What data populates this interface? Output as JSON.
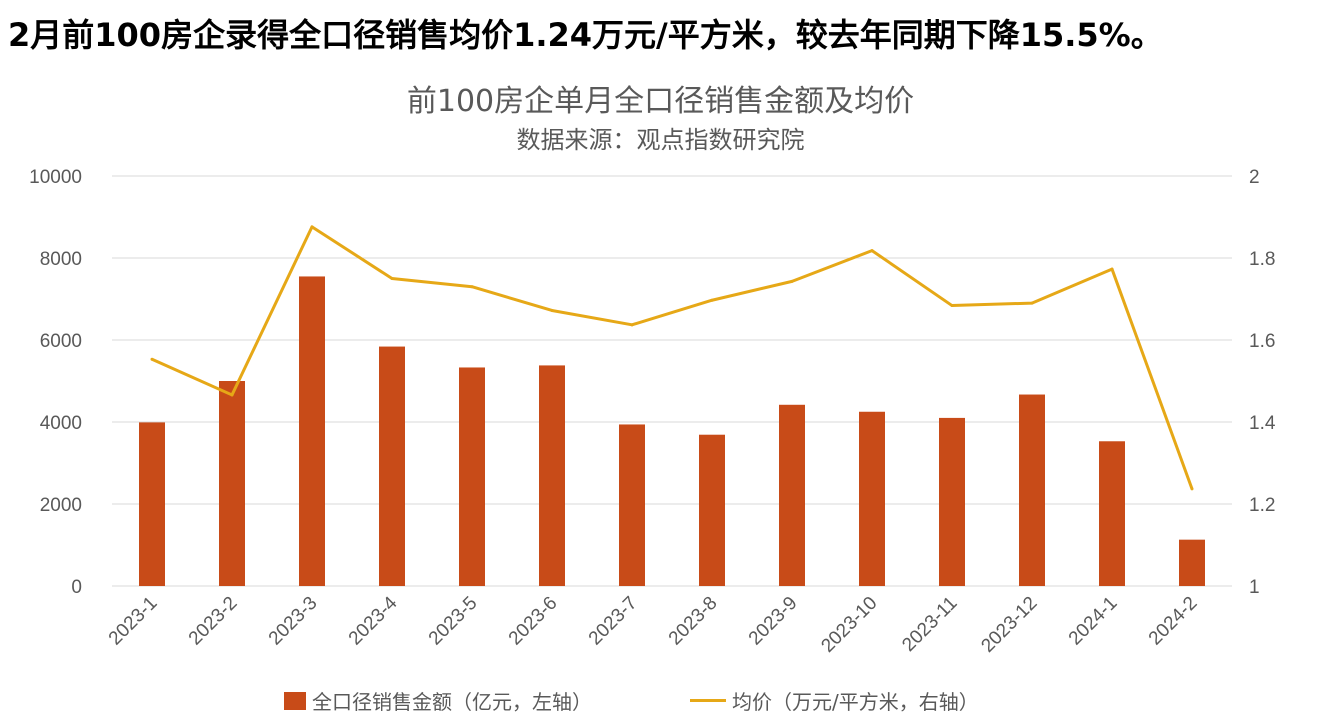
{
  "headline": "2月前100房企录得全口径销售均价1.24万元/平方米，较去年同期下降15.5%。",
  "colors": {
    "bar": "#C84B18",
    "line": "#E6A817",
    "grid": "#D9D9D9",
    "text": "#595959"
  },
  "chart_data": {
    "type": "bar+line",
    "title": "前100房企单月全口径销售金额及均价",
    "subtitle": "数据来源：观点指数研究院",
    "categories": [
      "2023-1",
      "2023-2",
      "2023-3",
      "2023-4",
      "2023-5",
      "2023-6",
      "2023-7",
      "2023-8",
      "2023-9",
      "2023-10",
      "2023-11",
      "2023-12",
      "2024-1",
      "2024-2"
    ],
    "y_left": {
      "min": 0,
      "max": 10000,
      "ticks": [
        0,
        2000,
        4000,
        6000,
        8000,
        10000
      ],
      "tick_labels": [
        "0",
        "2000",
        "4000",
        "6000",
        "8000",
        "10000"
      ]
    },
    "y_right": {
      "min": 1,
      "max": 2,
      "ticks": [
        1,
        1.2,
        1.4,
        1.6,
        1.8,
        2
      ],
      "tick_labels": [
        "1",
        "1.2",
        "1.4",
        "1.6",
        "1.8",
        "2"
      ]
    },
    "series": [
      {
        "name": "全口径销售金额（亿元，左轴）",
        "type": "bar",
        "axis": "left",
        "values": [
          3990,
          5000,
          7550,
          5840,
          5330,
          5380,
          3940,
          3690,
          4420,
          4250,
          4100,
          4670,
          3530,
          1130
        ]
      },
      {
        "name": "均价（万元/平方米，右轴）",
        "type": "line",
        "axis": "right",
        "values": [
          1.553,
          1.466,
          1.876,
          1.75,
          1.73,
          1.672,
          1.637,
          1.697,
          1.743,
          1.818,
          1.684,
          1.69,
          1.773,
          1.237
        ]
      }
    ],
    "grid": "horizontal",
    "legend_position": "bottom"
  }
}
